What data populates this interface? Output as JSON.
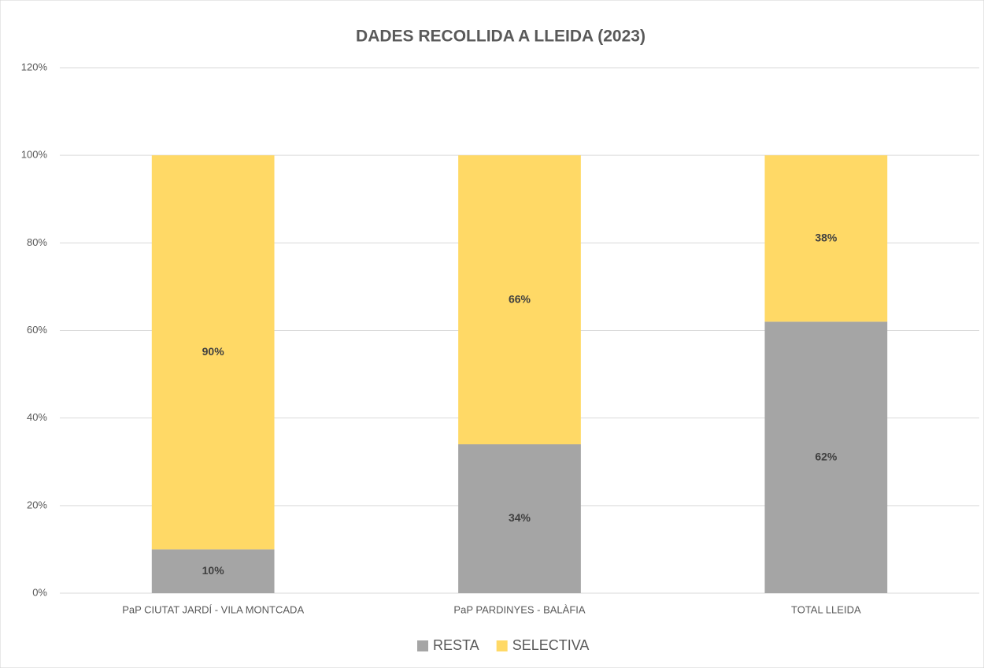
{
  "chart_data": {
    "type": "stacked_bar",
    "title": "DADES RECOLLIDA A LLEIDA (2023)",
    "categories": [
      "PaP CIUTAT JARDÍ - VILA MONTCADA",
      "PaP PARDINYES - BALÀFIA",
      "TOTAL LLEIDA"
    ],
    "series": [
      {
        "name": "RESTA",
        "color": "#a5a5a5",
        "values": [
          10,
          34,
          62
        ],
        "value_labels": [
          "10%",
          "34%",
          "62%"
        ]
      },
      {
        "name": "SELECTIVA",
        "color": "#ffd966",
        "values": [
          90,
          66,
          38
        ],
        "value_labels": [
          "90%",
          "66%",
          "38%"
        ]
      }
    ],
    "ylim": [
      0,
      120
    ],
    "yticks": [
      {
        "value": 0,
        "label": "0%"
      },
      {
        "value": 20,
        "label": "20%"
      },
      {
        "value": 40,
        "label": "40%"
      },
      {
        "value": 60,
        "label": "60%"
      },
      {
        "value": 80,
        "label": "80%"
      },
      {
        "value": 100,
        "label": "100%"
      },
      {
        "value": 120,
        "label": "120%"
      }
    ],
    "grid": true,
    "legend": "bottom"
  }
}
